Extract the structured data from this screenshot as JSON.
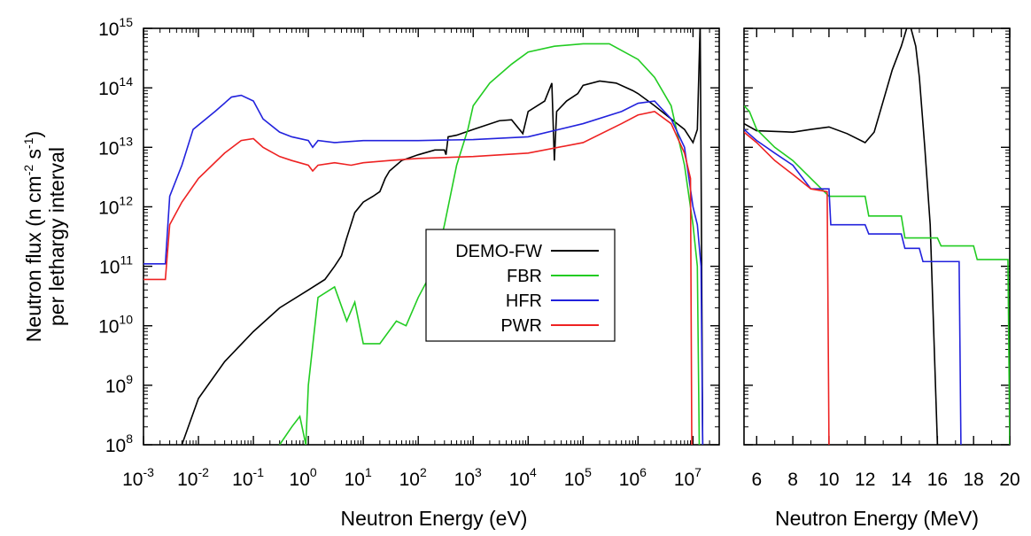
{
  "chart_data": [
    {
      "type": "line",
      "xscale": "log",
      "yscale": "log",
      "xlim": [
        0.001,
        30000000
      ],
      "ylim": [
        100000000,
        1000000000000000
      ],
      "xlabel": "Neutron Energy (eV)",
      "ylabel_line1": "Neutron flux (n cm",
      "ylabel_sup1": "-2",
      "ylabel_mid": " s",
      "ylabel_sup2": "-1",
      "ylabel_end": ")",
      "ylabel_line2": "per lethargy interval",
      "x_tick_bases": [
        "10",
        "10",
        "10",
        "10",
        "10",
        "10",
        "10",
        "10",
        "10",
        "10",
        "10"
      ],
      "x_tick_exps": [
        "-3",
        "-2",
        "-1",
        "0",
        "1",
        "2",
        "3",
        "4",
        "5",
        "6",
        "7"
      ],
      "y_tick_bases": [
        "10",
        "10",
        "10",
        "10",
        "10",
        "10",
        "10",
        "10"
      ],
      "y_tick_exps": [
        "8",
        "9",
        "10",
        "11",
        "12",
        "13",
        "14",
        "15"
      ],
      "legend_position": "center",
      "series": [
        {
          "name": "DEMO-FW",
          "color": "#000000",
          "points": [
            [
              0.005,
              100000000.0
            ],
            [
              0.01,
              600000000.0
            ],
            [
              0.03,
              2500000000.0
            ],
            [
              0.1,
              8000000000.0
            ],
            [
              0.3,
              20000000000.0
            ],
            [
              1,
              40000000000.0
            ],
            [
              2,
              60000000000.0
            ],
            [
              3,
              100000000000.0
            ],
            [
              4,
              150000000000.0
            ],
            [
              5,
              300000000000.0
            ],
            [
              7,
              800000000000.0
            ],
            [
              10,
              1200000000000.0
            ],
            [
              15,
              1500000000000.0
            ],
            [
              20,
              1800000000000.0
            ],
            [
              25,
              3000000000000.0
            ],
            [
              30,
              4000000000000.0
            ],
            [
              50,
              6000000000000.0
            ],
            [
              100,
              7500000000000.0
            ],
            [
              200,
              9000000000000.0
            ],
            [
              300,
              9000000000000.0
            ],
            [
              320,
              7500000000000.0
            ],
            [
              350,
              15000000000000.0
            ],
            [
              500,
              16000000000000.0
            ],
            [
              1000,
              20000000000000.0
            ],
            [
              3000,
              28000000000000.0
            ],
            [
              5000,
              29000000000000.0
            ],
            [
              8000,
              17000000000000.0
            ],
            [
              10000,
              40000000000000.0
            ],
            [
              20000,
              60000000000000.0
            ],
            [
              27000,
              120000000000000.0
            ],
            [
              30000,
              6000000000000.0
            ],
            [
              33000,
              40000000000000.0
            ],
            [
              50000,
              60000000000000.0
            ],
            [
              80000,
              80000000000000.0
            ],
            [
              100000,
              110000000000000.0
            ],
            [
              200000,
              130000000000000.0
            ],
            [
              400000,
              120000000000000.0
            ],
            [
              800000,
              90000000000000.0
            ],
            [
              1000000,
              80000000000000.0
            ],
            [
              2000000,
              50000000000000.0
            ],
            [
              4000000,
              30000000000000.0
            ],
            [
              7000000,
              20000000000000.0
            ],
            [
              10000000,
              12000000000000.0
            ],
            [
              12000000,
              20000000000000.0
            ],
            [
              13500000,
              1200000000000000.0
            ],
            [
              14000000,
              6000000000000.0
            ],
            [
              15000000,
              100000000.0
            ]
          ]
        },
        {
          "name": "FBR",
          "color": "#22cc22",
          "points": [
            [
              0.3,
              100000000.0
            ],
            [
              0.5,
              200000000.0
            ],
            [
              0.7,
              300000000.0
            ],
            [
              0.9,
              100000000.0
            ],
            [
              1,
              1000000000.0
            ],
            [
              1.5,
              30000000000.0
            ],
            [
              3,
              45000000000.0
            ],
            [
              5,
              12000000000.0
            ],
            [
              7,
              25000000000.0
            ],
            [
              10,
              5000000000.0
            ],
            [
              20,
              5000000000.0
            ],
            [
              40,
              12000000000.0
            ],
            [
              60,
              10000000000.0
            ],
            [
              100,
              30000000000.0
            ],
            [
              200,
              100000000000.0
            ],
            [
              300,
              500000000000.0
            ],
            [
              500,
              5000000000000.0
            ],
            [
              800,
              20000000000000.0
            ],
            [
              1000,
              50000000000000.0
            ],
            [
              2000,
              120000000000000.0
            ],
            [
              5000,
              250000000000000.0
            ],
            [
              10000,
              400000000000000.0
            ],
            [
              30000,
              500000000000000.0
            ],
            [
              100000,
              550000000000000.0
            ],
            [
              300000,
              550000000000000.0
            ],
            [
              1000000,
              300000000000000.0
            ],
            [
              2000000,
              150000000000000.0
            ],
            [
              4000000,
              50000000000000.0
            ],
            [
              7000000,
              5000000000000.0
            ],
            [
              10000000,
              500000000000.0
            ],
            [
              12000000,
              100000000000.0
            ],
            [
              13000000,
              100000000.0
            ]
          ]
        },
        {
          "name": "HFR",
          "color": "#2222dd",
          "points": [
            [
              0.001,
              110000000000.0
            ],
            [
              0.0025,
              110000000000.0
            ],
            [
              0.003,
              1500000000000.0
            ],
            [
              0.005,
              5000000000000.0
            ],
            [
              0.008,
              20000000000000.0
            ],
            [
              0.02,
              40000000000000.0
            ],
            [
              0.04,
              70000000000000.0
            ],
            [
              0.06,
              75000000000000.0
            ],
            [
              0.1,
              60000000000000.0
            ],
            [
              0.15,
              30000000000000.0
            ],
            [
              0.3,
              18000000000000.0
            ],
            [
              0.5,
              15000000000000.0
            ],
            [
              1,
              13000000000000.0
            ],
            [
              1.2,
              10000000000000.0
            ],
            [
              1.5,
              13000000000000.0
            ],
            [
              3,
              12000000000000.0
            ],
            [
              10,
              13000000000000.0
            ],
            [
              100,
              13000000000000.0
            ],
            [
              1000,
              13500000000000.0
            ],
            [
              10000,
              15000000000000.0
            ],
            [
              100000,
              25000000000000.0
            ],
            [
              500000,
              40000000000000.0
            ],
            [
              1000000,
              55000000000000.0
            ],
            [
              2000000,
              60000000000000.0
            ],
            [
              4000000,
              30000000000000.0
            ],
            [
              7000000,
              10000000000000.0
            ],
            [
              10000000,
              1000000000000.0
            ],
            [
              12000000,
              500000000000.0
            ],
            [
              14000000,
              100000000000.0
            ],
            [
              15000000,
              100000000.0
            ]
          ]
        },
        {
          "name": "PWR",
          "color": "#ee2222",
          "points": [
            [
              0.001,
              60000000000.0
            ],
            [
              0.0025,
              60000000000.0
            ],
            [
              0.003,
              500000000000.0
            ],
            [
              0.005,
              1200000000000.0
            ],
            [
              0.01,
              3000000000000.0
            ],
            [
              0.03,
              8000000000000.0
            ],
            [
              0.06,
              13000000000000.0
            ],
            [
              0.1,
              14000000000000.0
            ],
            [
              0.15,
              10000000000000.0
            ],
            [
              0.3,
              7000000000000.0
            ],
            [
              0.5,
              6000000000000.0
            ],
            [
              1,
              5000000000000.0
            ],
            [
              1.2,
              4000000000000.0
            ],
            [
              1.5,
              5000000000000.0
            ],
            [
              3,
              5500000000000.0
            ],
            [
              6,
              5000000000000.0
            ],
            [
              10,
              5500000000000.0
            ],
            [
              30,
              6000000000000.0
            ],
            [
              100,
              6500000000000.0
            ],
            [
              1000,
              7000000000000.0
            ],
            [
              10000,
              8000000000000.0
            ],
            [
              100000,
              12000000000000.0
            ],
            [
              500000,
              25000000000000.0
            ],
            [
              1000000,
              35000000000000.0
            ],
            [
              2000000,
              40000000000000.0
            ],
            [
              4000000,
              25000000000000.0
            ],
            [
              7000000,
              8000000000000.0
            ],
            [
              9000000,
              3000000000000.0
            ],
            [
              9500000,
              100000000.0
            ]
          ]
        }
      ]
    },
    {
      "type": "line",
      "xscale": "linear",
      "yscale": "log",
      "xlim": [
        5.3,
        20
      ],
      "ylim": [
        100000000,
        1000000000000000
      ],
      "xlabel": "Neutron Energy (MeV)",
      "x_ticks": [
        "6",
        "8",
        "10",
        "12",
        "14",
        "16",
        "18",
        "20"
      ],
      "series": [
        {
          "name": "DEMO-FW",
          "color": "#000000",
          "points": [
            [
              5.3,
              25000000000000.0
            ],
            [
              6,
              19000000000000.0
            ],
            [
              8,
              18000000000000.0
            ],
            [
              9,
              20000000000000.0
            ],
            [
              10,
              22000000000000.0
            ],
            [
              11,
              17000000000000.0
            ],
            [
              12,
              12000000000000.0
            ],
            [
              12.5,
              18000000000000.0
            ],
            [
              13,
              60000000000000.0
            ],
            [
              13.5,
              200000000000000.0
            ],
            [
              14,
              500000000000000.0
            ],
            [
              14.3,
              1000000000000000.0
            ],
            [
              14.5,
              1100000000000000.0
            ],
            [
              14.8,
              500000000000000.0
            ],
            [
              15,
              150000000000000.0
            ],
            [
              15.3,
              10000000000000.0
            ],
            [
              15.6,
              500000000000.0
            ],
            [
              16,
              100000000.0
            ]
          ]
        },
        {
          "name": "FBR",
          "color": "#22cc22",
          "points": [
            [
              5.3,
              50000000000000.0
            ],
            [
              5.6,
              40000000000000.0
            ],
            [
              6,
              20000000000000.0
            ],
            [
              7,
              10000000000000.0
            ],
            [
              8,
              6000000000000.0
            ],
            [
              9,
              3000000000000.0
            ],
            [
              10,
              1500000000000.0
            ],
            [
              12,
              1500000000000.0
            ],
            [
              12.2,
              700000000000.0
            ],
            [
              14,
              700000000000.0
            ],
            [
              14.2,
              300000000000.0
            ],
            [
              16,
              300000000000.0
            ],
            [
              16.2,
              220000000000.0
            ],
            [
              18,
              220000000000.0
            ],
            [
              18.2,
              130000000000.0
            ],
            [
              19.9,
              130000000000.0
            ],
            [
              20,
              100000000.0
            ]
          ]
        },
        {
          "name": "HFR",
          "color": "#2222dd",
          "points": [
            [
              5.3,
              20000000000000.0
            ],
            [
              6,
              13000000000000.0
            ],
            [
              7,
              8000000000000.0
            ],
            [
              8,
              5000000000000.0
            ],
            [
              9,
              2000000000000.0
            ],
            [
              10,
              2000000000000.0
            ],
            [
              10.1,
              500000000000.0
            ],
            [
              12,
              500000000000.0
            ],
            [
              12.2,
              350000000000.0
            ],
            [
              14,
              350000000000.0
            ],
            [
              14.2,
              200000000000.0
            ],
            [
              15,
              200000000000.0
            ],
            [
              15.2,
              120000000000.0
            ],
            [
              17.2,
              120000000000.0
            ],
            [
              17.3,
              100000000.0
            ]
          ]
        },
        {
          "name": "PWR",
          "color": "#ee2222",
          "points": [
            [
              5.3,
              18000000000000.0
            ],
            [
              6,
              12000000000000.0
            ],
            [
              7,
              6000000000000.0
            ],
            [
              8,
              3500000000000.0
            ],
            [
              9,
              2000000000000.0
            ],
            [
              9.9,
              1800000000000.0
            ],
            [
              10,
              100000000.0
            ]
          ]
        }
      ]
    }
  ]
}
